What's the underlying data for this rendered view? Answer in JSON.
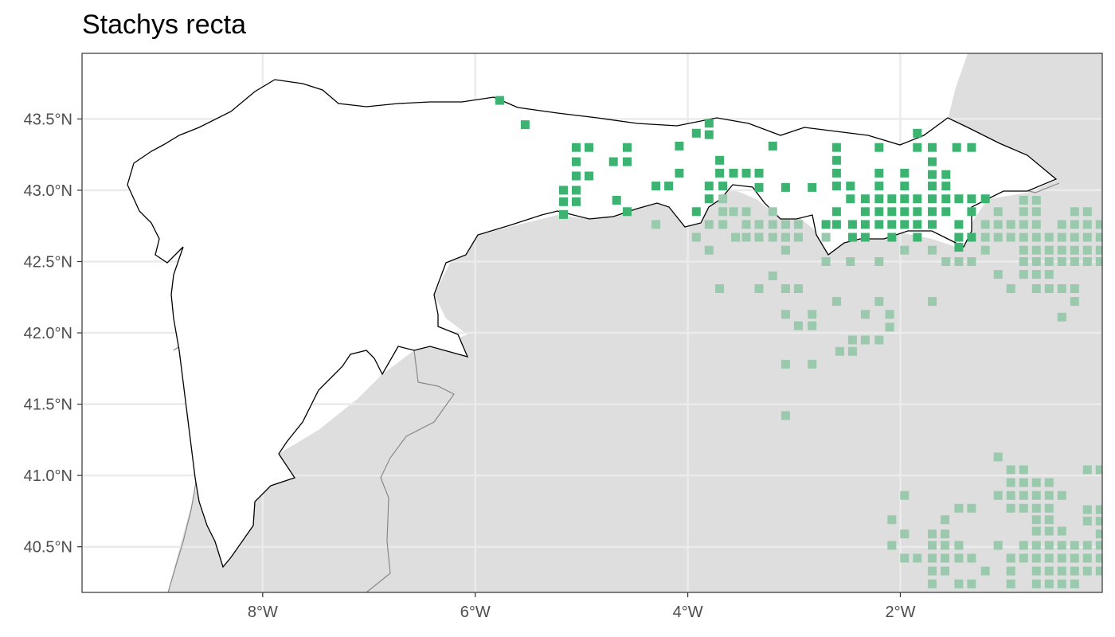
{
  "title": "Stachys recta",
  "colors": {
    "land_inside": "#ffffff",
    "land_outside": "#dedede",
    "grid": "#ebebeb",
    "panel_border": "#333333",
    "region_border": "#000000",
    "province_border": "#888888",
    "point_inside": "#3cb371",
    "point_outside": "#9ac9ae"
  },
  "axes": {
    "x_ticks": [
      "8°W",
      "6°W",
      "4°W",
      "2°W"
    ],
    "y_ticks": [
      "43.5°N",
      "43.0°N",
      "42.5°N",
      "42.0°N",
      "41.5°N",
      "41.0°N",
      "40.5°N"
    ],
    "x_range": [
      -9.7,
      -0.1
    ],
    "y_range": [
      40.18,
      43.96
    ]
  },
  "map_data": {
    "type": "occurrence-grid-map",
    "legend": "none",
    "grid": true,
    "points_inside": [
      [
        -5.77,
        43.63
      ],
      [
        -5.53,
        43.46
      ],
      [
        -5.05,
        43.3
      ],
      [
        -4.93,
        43.3
      ],
      [
        -4.57,
        43.3
      ],
      [
        -4.08,
        43.31
      ],
      [
        -3.92,
        43.4
      ],
      [
        -3.8,
        43.39
      ],
      [
        -3.8,
        43.47
      ],
      [
        -3.2,
        43.31
      ],
      [
        -2.6,
        43.3
      ],
      [
        -2.2,
        43.3
      ],
      [
        -1.84,
        43.4
      ],
      [
        -1.84,
        43.3
      ],
      [
        -1.7,
        43.3
      ],
      [
        -1.47,
        43.3
      ],
      [
        -1.33,
        43.3
      ],
      [
        -5.05,
        43.2
      ],
      [
        -4.7,
        43.2
      ],
      [
        -4.57,
        43.2
      ],
      [
        -3.7,
        43.21
      ],
      [
        -2.6,
        43.21
      ],
      [
        -1.7,
        43.2
      ],
      [
        -5.05,
        43.1
      ],
      [
        -4.93,
        43.1
      ],
      [
        -4.08,
        43.12
      ],
      [
        -3.7,
        43.12
      ],
      [
        -3.57,
        43.12
      ],
      [
        -3.45,
        43.12
      ],
      [
        -3.33,
        43.12
      ],
      [
        -2.6,
        43.12
      ],
      [
        -2.2,
        43.12
      ],
      [
        -1.96,
        43.12
      ],
      [
        -1.7,
        43.11
      ],
      [
        -1.57,
        43.11
      ],
      [
        -5.17,
        43.0
      ],
      [
        -5.05,
        43.0
      ],
      [
        -4.3,
        43.03
      ],
      [
        -4.18,
        43.03
      ],
      [
        -3.8,
        43.03
      ],
      [
        -3.67,
        43.03
      ],
      [
        -3.33,
        43.02
      ],
      [
        -3.08,
        43.02
      ],
      [
        -2.83,
        43.02
      ],
      [
        -2.6,
        43.03
      ],
      [
        -2.47,
        43.03
      ],
      [
        -2.2,
        43.03
      ],
      [
        -1.96,
        43.03
      ],
      [
        -1.7,
        43.03
      ],
      [
        -1.57,
        43.03
      ],
      [
        -5.17,
        42.92
      ],
      [
        -5.05,
        42.92
      ],
      [
        -4.67,
        42.93
      ],
      [
        -3.8,
        42.94
      ],
      [
        -2.47,
        42.94
      ],
      [
        -2.33,
        42.94
      ],
      [
        -2.2,
        42.94
      ],
      [
        -2.08,
        42.94
      ],
      [
        -1.96,
        42.94
      ],
      [
        -1.84,
        42.94
      ],
      [
        -1.7,
        42.94
      ],
      [
        -1.57,
        42.94
      ],
      [
        -1.45,
        42.94
      ],
      [
        -1.33,
        42.94
      ],
      [
        -1.2,
        42.94
      ],
      [
        -5.17,
        42.83
      ],
      [
        -4.57,
        42.85
      ],
      [
        -3.92,
        42.85
      ],
      [
        -2.6,
        42.85
      ],
      [
        -2.33,
        42.85
      ],
      [
        -2.2,
        42.85
      ],
      [
        -2.08,
        42.85
      ],
      [
        -1.96,
        42.85
      ],
      [
        -1.84,
        42.85
      ],
      [
        -1.7,
        42.85
      ],
      [
        -1.57,
        42.85
      ],
      [
        -1.33,
        42.85
      ],
      [
        -2.7,
        42.76
      ],
      [
        -2.6,
        42.76
      ],
      [
        -2.45,
        42.76
      ],
      [
        -2.33,
        42.76
      ],
      [
        -2.2,
        42.76
      ],
      [
        -2.08,
        42.76
      ],
      [
        -1.96,
        42.76
      ],
      [
        -1.84,
        42.76
      ],
      [
        -1.7,
        42.76
      ],
      [
        -1.45,
        42.76
      ],
      [
        -2.45,
        42.67
      ],
      [
        -2.33,
        42.67
      ],
      [
        -2.08,
        42.67
      ],
      [
        -1.84,
        42.67
      ],
      [
        -1.45,
        42.67
      ],
      [
        -1.33,
        42.67
      ],
      [
        -1.45,
        42.6
      ]
    ],
    "points_outside": [
      [
        -4.3,
        42.76
      ],
      [
        -3.67,
        42.94
      ],
      [
        -3.67,
        42.85
      ],
      [
        -3.67,
        42.76
      ],
      [
        -3.8,
        42.76
      ],
      [
        -3.92,
        42.67
      ],
      [
        -3.8,
        42.58
      ],
      [
        -3.57,
        42.85
      ],
      [
        -3.45,
        42.85
      ],
      [
        -3.45,
        42.76
      ],
      [
        -3.45,
        42.67
      ],
      [
        -3.55,
        42.67
      ],
      [
        -3.33,
        42.76
      ],
      [
        -3.33,
        42.67
      ],
      [
        -3.2,
        42.76
      ],
      [
        -3.2,
        42.85
      ],
      [
        -3.2,
        42.67
      ],
      [
        -3.08,
        42.76
      ],
      [
        -3.08,
        42.67
      ],
      [
        -2.96,
        42.76
      ],
      [
        -2.96,
        42.67
      ],
      [
        -3.08,
        42.58
      ],
      [
        -2.7,
        42.67
      ],
      [
        -2.7,
        42.5
      ],
      [
        -2.47,
        42.5
      ],
      [
        -2.2,
        42.5
      ],
      [
        -1.96,
        42.58
      ],
      [
        -1.7,
        42.58
      ],
      [
        -1.45,
        42.5
      ],
      [
        -1.57,
        42.5
      ],
      [
        -1.33,
        42.5
      ],
      [
        -1.2,
        42.58
      ],
      [
        -1.2,
        42.67
      ],
      [
        -1.2,
        42.76
      ],
      [
        -1.08,
        42.85
      ],
      [
        -1.08,
        42.76
      ],
      [
        -0.96,
        42.76
      ],
      [
        -1.08,
        42.67
      ],
      [
        -0.96,
        42.67
      ],
      [
        -0.84,
        42.76
      ],
      [
        -0.84,
        42.93
      ],
      [
        -0.72,
        42.93
      ],
      [
        -0.84,
        42.85
      ],
      [
        -0.72,
        42.85
      ],
      [
        -0.72,
        42.76
      ],
      [
        -0.6,
        42.67
      ],
      [
        -0.72,
        42.67
      ],
      [
        -0.84,
        42.67
      ],
      [
        -0.48,
        42.67
      ],
      [
        -0.36,
        42.67
      ],
      [
        -0.24,
        42.67
      ],
      [
        -0.12,
        42.67
      ],
      [
        -0.48,
        42.76
      ],
      [
        -0.36,
        42.76
      ],
      [
        -0.24,
        42.76
      ],
      [
        -0.12,
        42.76
      ],
      [
        -0.36,
        42.85
      ],
      [
        -0.24,
        42.85
      ],
      [
        -0.84,
        42.58
      ],
      [
        -0.72,
        42.58
      ],
      [
        -0.6,
        42.58
      ],
      [
        -0.48,
        42.58
      ],
      [
        -0.36,
        42.58
      ],
      [
        -0.24,
        42.58
      ],
      [
        -0.12,
        42.58
      ],
      [
        -0.84,
        42.5
      ],
      [
        -0.72,
        42.5
      ],
      [
        -0.6,
        42.5
      ],
      [
        -0.48,
        42.5
      ],
      [
        -0.36,
        42.5
      ],
      [
        -0.24,
        42.5
      ],
      [
        -0.12,
        42.5
      ],
      [
        -0.84,
        42.41
      ],
      [
        -0.72,
        42.41
      ],
      [
        -0.6,
        42.41
      ],
      [
        -1.08,
        42.41
      ],
      [
        -0.72,
        42.31
      ],
      [
        -0.6,
        42.31
      ],
      [
        -0.48,
        42.31
      ],
      [
        -0.36,
        42.31
      ],
      [
        -0.96,
        42.31
      ],
      [
        -0.36,
        42.22
      ],
      [
        -0.48,
        42.11
      ],
      [
        -3.7,
        42.31
      ],
      [
        -3.33,
        42.31
      ],
      [
        -3.2,
        42.4
      ],
      [
        -3.08,
        42.31
      ],
      [
        -2.96,
        42.31
      ],
      [
        -2.6,
        42.22
      ],
      [
        -2.2,
        42.22
      ],
      [
        -1.7,
        42.22
      ],
      [
        -3.08,
        42.13
      ],
      [
        -2.96,
        42.05
      ],
      [
        -2.83,
        42.05
      ],
      [
        -2.83,
        42.13
      ],
      [
        -2.33,
        42.13
      ],
      [
        -2.1,
        42.13
      ],
      [
        -2.1,
        42.04
      ],
      [
        -2.45,
        41.95
      ],
      [
        -2.33,
        41.95
      ],
      [
        -2.2,
        41.95
      ],
      [
        -2.45,
        41.87
      ],
      [
        -2.57,
        41.87
      ],
      [
        -3.08,
        41.78
      ],
      [
        -2.83,
        41.78
      ],
      [
        -3.08,
        41.42
      ],
      [
        -1.08,
        41.13
      ],
      [
        -0.96,
        41.04
      ],
      [
        -0.84,
        41.04
      ],
      [
        -0.96,
        40.95
      ],
      [
        -0.84,
        40.95
      ],
      [
        -0.72,
        40.95
      ],
      [
        -0.6,
        40.95
      ],
      [
        -1.08,
        40.86
      ],
      [
        -0.96,
        40.86
      ],
      [
        -0.84,
        40.86
      ],
      [
        -0.72,
        40.86
      ],
      [
        -0.6,
        40.86
      ],
      [
        -0.48,
        40.86
      ],
      [
        -0.96,
        40.77
      ],
      [
        -0.84,
        40.77
      ],
      [
        -0.72,
        40.77
      ],
      [
        -0.6,
        40.77
      ],
      [
        -0.24,
        40.76
      ],
      [
        -0.12,
        40.76
      ],
      [
        -1.45,
        40.77
      ],
      [
        -1.33,
        40.77
      ],
      [
        -1.96,
        40.86
      ],
      [
        -2.08,
        40.69
      ],
      [
        -1.96,
        40.59
      ],
      [
        -2.08,
        40.51
      ],
      [
        -1.96,
        40.42
      ],
      [
        -1.84,
        40.42
      ],
      [
        -1.58,
        40.69
      ],
      [
        -1.58,
        40.59
      ],
      [
        -1.7,
        40.59
      ],
      [
        -1.58,
        40.51
      ],
      [
        -1.7,
        40.51
      ],
      [
        -1.45,
        40.51
      ],
      [
        -1.45,
        40.42
      ],
      [
        -1.33,
        40.42
      ],
      [
        -1.58,
        40.42
      ],
      [
        -0.72,
        40.69
      ],
      [
        -0.6,
        40.69
      ],
      [
        -0.72,
        40.61
      ],
      [
        -0.6,
        40.61
      ],
      [
        -0.48,
        40.61
      ],
      [
        -0.24,
        40.68
      ],
      [
        -0.12,
        40.68
      ],
      [
        -0.84,
        40.51
      ],
      [
        -0.72,
        40.51
      ],
      [
        -0.6,
        40.51
      ],
      [
        -0.48,
        40.51
      ],
      [
        -0.36,
        40.51
      ],
      [
        -0.24,
        40.51
      ],
      [
        -0.12,
        40.51
      ],
      [
        -0.84,
        40.42
      ],
      [
        -0.72,
        40.42
      ],
      [
        -0.6,
        40.42
      ],
      [
        -0.48,
        40.42
      ],
      [
        -0.36,
        40.42
      ],
      [
        -0.24,
        40.42
      ],
      [
        -0.12,
        40.42
      ],
      [
        -0.72,
        40.33
      ],
      [
        -0.6,
        40.33
      ],
      [
        -0.48,
        40.33
      ],
      [
        -0.36,
        40.33
      ],
      [
        -0.24,
        40.33
      ],
      [
        -0.12,
        40.33
      ],
      [
        -0.72,
        40.24
      ],
      [
        -0.6,
        40.24
      ],
      [
        -0.48,
        40.24
      ],
      [
        -0.36,
        40.24
      ],
      [
        -1.08,
        40.51
      ],
      [
        -0.96,
        40.42
      ],
      [
        -0.96,
        40.33
      ],
      [
        -1.2,
        40.33
      ],
      [
        -0.96,
        40.24
      ],
      [
        -1.33,
        40.24
      ],
      [
        -1.45,
        40.24
      ],
      [
        -1.7,
        40.24
      ],
      [
        -1.7,
        40.33
      ],
      [
        -1.58,
        40.33
      ],
      [
        -1.7,
        40.42
      ],
      [
        -0.12,
        41.04
      ],
      [
        -0.24,
        41.04
      ],
      [
        -0.12,
        40.59
      ]
    ]
  }
}
